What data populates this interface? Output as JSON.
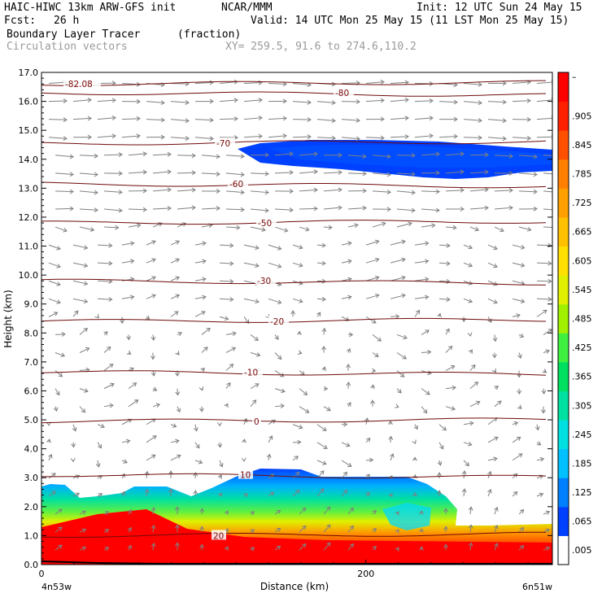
{
  "header": {
    "title_left": "HAIC-HIWC 13km ARW-GFS init",
    "org": "NCAR/MMM",
    "init": "Init: 12 UTC Sun 24 May 15",
    "fcst_label": "Fcst:",
    "fcst_value": "26 h",
    "valid": "Valid: 14 UTC Mon 25 May 15 (11 LST Mon 25 May 15)",
    "field_name": "Boundary Layer Tracer",
    "field_units": "(fraction)",
    "vector_name": "Circulation vectors",
    "xy_range": "XY= 259.5, 91.6 to 274.6,110.2"
  },
  "chart_data": {
    "type": "heatmap",
    "ylabel": "Height (km)",
    "xlabel": "Distance (km)",
    "ylim": [
      0,
      17
    ],
    "xlim": [
      0,
      315
    ],
    "y_ticks": [
      "0.0",
      "1.0",
      "2.0",
      "3.0",
      "4.0",
      "5.0",
      "6.0",
      "7.0",
      "8.0",
      "9.0",
      "10.0",
      "11.0",
      "12.0",
      "13.0",
      "14.0",
      "15.0",
      "16.0",
      "17.0"
    ],
    "x_ticks": [
      "0",
      "200"
    ],
    "x_ends": [
      "4n53w",
      "6n51w"
    ],
    "colorbar_labels": [
      ".005",
      ".065",
      ".125",
      ".185",
      ".245",
      ".305",
      ".365",
      ".425",
      ".485",
      ".545",
      ".605",
      ".665",
      ".725",
      ".785",
      ".845",
      ".905",
      "–"
    ],
    "colorbar_colors": [
      "#ffffff",
      "#0040ff",
      "#0080ff",
      "#00c0ff",
      "#00e0e0",
      "#00e0a0",
      "#00e060",
      "#40f040",
      "#a0f000",
      "#e0f000",
      "#ffe000",
      "#ffc000",
      "#ffa000",
      "#ff8000",
      "#ff5000",
      "#ff2000",
      "#ff0000"
    ],
    "temperature_contours": [
      {
        "label": "20",
        "y": 1.0
      },
      {
        "label": "10",
        "y": 3.1
      },
      {
        "label": "0",
        "y": 4.95
      },
      {
        "label": "-10",
        "y": 6.65
      },
      {
        "label": "-20",
        "y": 8.4
      },
      {
        "label": "-30",
        "y": 9.8
      },
      {
        "label": "-50",
        "y": 11.8
      },
      {
        "label": "-60",
        "y": 13.15
      },
      {
        "label": "-70",
        "y": 14.55
      },
      {
        "label": "-80",
        "y": 16.3
      },
      {
        "label": "-82.08",
        "y": 16.6
      }
    ]
  }
}
